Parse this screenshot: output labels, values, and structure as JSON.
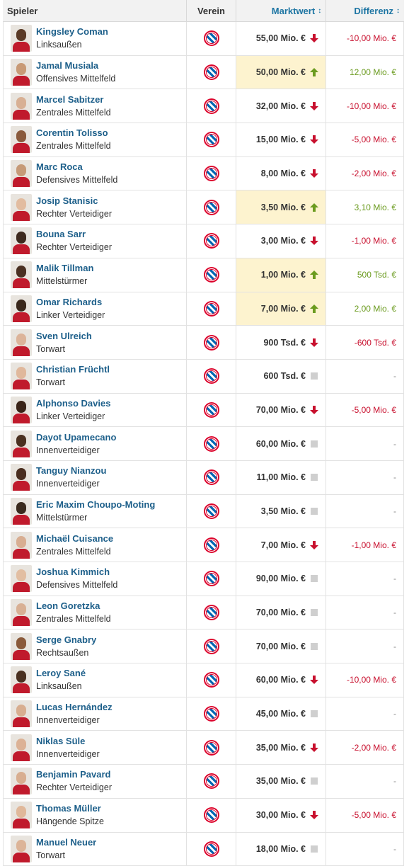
{
  "header": {
    "player": "Spieler",
    "club": "Verein",
    "market_value": "Marktwert",
    "difference": "Differenz",
    "sort_icon": "↕"
  },
  "colors": {
    "link": "#1d5f8a",
    "down": "#c8102e",
    "up": "#6b9b1f",
    "highlight": "#fdf3cf",
    "club_red": "#dc052d",
    "club_blue": "#0066b2"
  },
  "players": [
    {
      "name": "Kingsley Coman",
      "position": "Linksaußen",
      "value": "55,00 Mio. €",
      "trend": "down",
      "diff": "-10,00 Mio. €",
      "skin": "#5a3a26"
    },
    {
      "name": "Jamal Musiala",
      "position": "Offensives Mittelfeld",
      "value": "50,00 Mio. €",
      "trend": "up",
      "diff": "12,00 Mio. €",
      "skin": "#c89a76"
    },
    {
      "name": "Marcel Sabitzer",
      "position": "Zentrales Mittelfeld",
      "value": "32,00 Mio. €",
      "trend": "down",
      "diff": "-10,00 Mio. €",
      "skin": "#d8b094"
    },
    {
      "name": "Corentin Tolisso",
      "position": "Zentrales Mittelfeld",
      "value": "15,00 Mio. €",
      "trend": "down",
      "diff": "-5,00 Mio. €",
      "skin": "#8a5a3c"
    },
    {
      "name": "Marc Roca",
      "position": "Defensives Mittelfeld",
      "value": "8,00 Mio. €",
      "trend": "down",
      "diff": "-2,00 Mio. €",
      "skin": "#c69a78"
    },
    {
      "name": "Josip Stanisic",
      "position": "Rechter Verteidiger",
      "value": "3,50 Mio. €",
      "trend": "up",
      "diff": "3,10 Mio. €",
      "skin": "#e2bca0"
    },
    {
      "name": "Bouna Sarr",
      "position": "Rechter Verteidiger",
      "value": "3,00 Mio. €",
      "trend": "down",
      "diff": "-1,00 Mio. €",
      "skin": "#3e2a1e"
    },
    {
      "name": "Malik Tillman",
      "position": "Mittelstürmer",
      "value": "1,00 Mio. €",
      "trend": "up",
      "diff": "500 Tsd. €",
      "skin": "#4a3022"
    },
    {
      "name": "Omar Richards",
      "position": "Linker Verteidiger",
      "value": "7,00 Mio. €",
      "trend": "up",
      "diff": "2,00 Mio. €",
      "skin": "#3a281c"
    },
    {
      "name": "Sven Ulreich",
      "position": "Torwart",
      "value": "900 Tsd. €",
      "trend": "down",
      "diff": "-600 Tsd. €",
      "skin": "#dcb49a"
    },
    {
      "name": "Christian Früchtl",
      "position": "Torwart",
      "value": "600 Tsd. €",
      "trend": "same",
      "diff": "-",
      "skin": "#e0b89c"
    },
    {
      "name": "Alphonso Davies",
      "position": "Linker Verteidiger",
      "value": "70,00 Mio. €",
      "trend": "down",
      "diff": "-5,00 Mio. €",
      "skin": "#3a2418"
    },
    {
      "name": "Dayot Upamecano",
      "position": "Innenverteidiger",
      "value": "60,00 Mio. €",
      "trend": "same",
      "diff": "-",
      "skin": "#4a3020"
    },
    {
      "name": "Tanguy Nianzou",
      "position": "Innenverteidiger",
      "value": "11,00 Mio. €",
      "trend": "same",
      "diff": "-",
      "skin": "#4a2e20"
    },
    {
      "name": "Eric Maxim Choupo-Moting",
      "position": "Mittelstürmer",
      "value": "3,50 Mio. €",
      "trend": "same",
      "diff": "-",
      "skin": "#3a2a1e"
    },
    {
      "name": "Michaël Cuisance",
      "position": "Zentrales Mittelfeld",
      "value": "7,00 Mio. €",
      "trend": "down",
      "diff": "-1,00 Mio. €",
      "skin": "#d8ae92"
    },
    {
      "name": "Joshua Kimmich",
      "position": "Defensives Mittelfeld",
      "value": "90,00 Mio. €",
      "trend": "same",
      "diff": "-",
      "skin": "#e2bea2"
    },
    {
      "name": "Leon Goretzka",
      "position": "Zentrales Mittelfeld",
      "value": "70,00 Mio. €",
      "trend": "same",
      "diff": "-",
      "skin": "#d8b094"
    },
    {
      "name": "Serge Gnabry",
      "position": "Rechtsaußen",
      "value": "70,00 Mio. €",
      "trend": "same",
      "diff": "-",
      "skin": "#8a5a3a"
    },
    {
      "name": "Leroy Sané",
      "position": "Linksaußen",
      "value": "60,00 Mio. €",
      "trend": "down",
      "diff": "-10,00 Mio. €",
      "skin": "#4a3020"
    },
    {
      "name": "Lucas Hernández",
      "position": "Innenverteidiger",
      "value": "45,00 Mio. €",
      "trend": "same",
      "diff": "-",
      "skin": "#d8ae90"
    },
    {
      "name": "Niklas Süle",
      "position": "Innenverteidiger",
      "value": "35,00 Mio. €",
      "trend": "down",
      "diff": "-2,00 Mio. €",
      "skin": "#dcb296"
    },
    {
      "name": "Benjamin Pavard",
      "position": "Rechter Verteidiger",
      "value": "35,00 Mio. €",
      "trend": "same",
      "diff": "-",
      "skin": "#d8ae90"
    },
    {
      "name": "Thomas Müller",
      "position": "Hängende Spitze",
      "value": "30,00 Mio. €",
      "trend": "down",
      "diff": "-5,00 Mio. €",
      "skin": "#e0b89a"
    },
    {
      "name": "Manuel Neuer",
      "position": "Torwart",
      "value": "18,00 Mio. €",
      "trend": "same",
      "diff": "-",
      "skin": "#dcb498"
    }
  ]
}
